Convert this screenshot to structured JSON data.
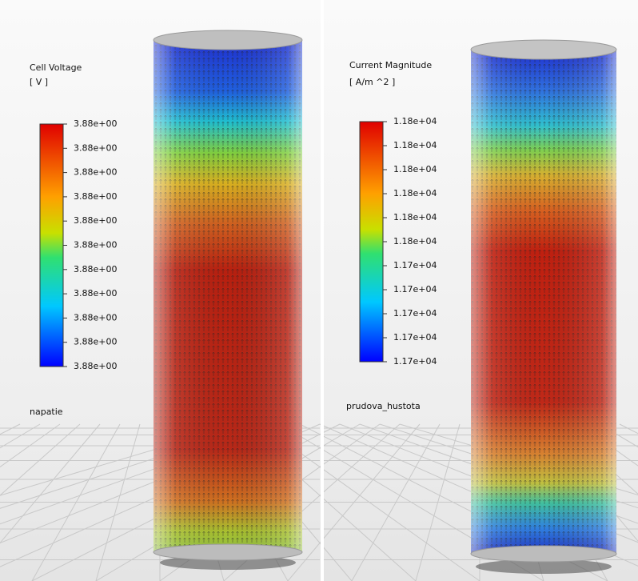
{
  "panels": [
    {
      "legend_title": "Cell Voltage",
      "legend_unit": "[ V ]",
      "ticks": [
        "3.88e+00",
        "3.88e+00",
        "3.88e+00",
        "3.88e+00",
        "3.88e+00",
        "3.88e+00",
        "3.88e+00",
        "3.88e+00",
        "3.88e+00",
        "3.88e+00",
        "3.88e+00"
      ],
      "name": "napatie"
    },
    {
      "legend_title": "Current Magnitude",
      "legend_unit": "[ A/m ^2 ]",
      "ticks": [
        "1.18e+04",
        "1.18e+04",
        "1.18e+04",
        "1.18e+04",
        "1.18e+04",
        "1.18e+04",
        "1.17e+04",
        "1.17e+04",
        "1.17e+04",
        "1.17e+04",
        "1.17e+04"
      ],
      "name": "prudova_hustota"
    }
  ]
}
